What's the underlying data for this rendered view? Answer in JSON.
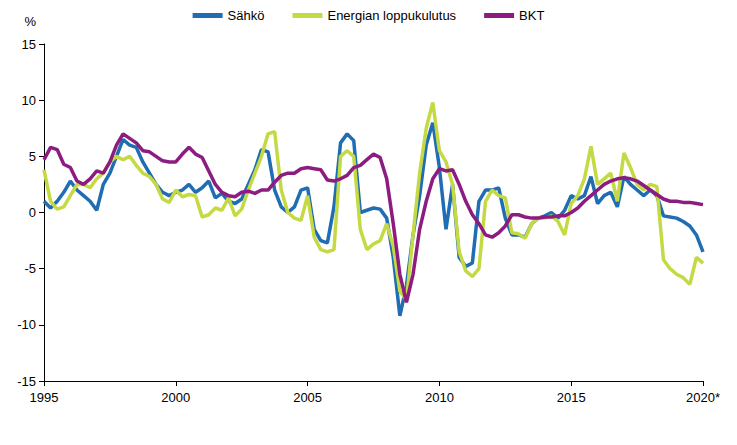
{
  "chart_data": {
    "type": "line",
    "ylabel": "%",
    "legend": "top",
    "grid": false,
    "xlim": [
      1995,
      2020
    ],
    "xticks": [
      1995,
      2000,
      2005,
      2010,
      2015,
      {
        "value": 2020,
        "label": "2020*"
      }
    ],
    "ylim": [
      -15,
      15
    ],
    "yticks": [
      -15,
      -10,
      -5,
      0,
      5,
      10,
      15
    ],
    "x": [
      1995,
      1995.25,
      1995.5,
      1995.75,
      1996,
      1996.25,
      1996.5,
      1996.75,
      1997,
      1997.25,
      1997.5,
      1997.75,
      1998,
      1998.25,
      1998.5,
      1998.75,
      1999,
      1999.25,
      1999.5,
      1999.75,
      2000,
      2000.25,
      2000.5,
      2000.75,
      2001,
      2001.25,
      2001.5,
      2001.75,
      2002,
      2002.25,
      2002.5,
      2002.75,
      2003,
      2003.25,
      2003.5,
      2003.75,
      2004,
      2004.25,
      2004.5,
      2004.75,
      2005,
      2005.25,
      2005.5,
      2005.75,
      2006,
      2006.25,
      2006.5,
      2006.75,
      2007,
      2007.25,
      2007.5,
      2007.75,
      2008,
      2008.25,
      2008.5,
      2008.75,
      2009,
      2009.25,
      2009.5,
      2009.75,
      2010,
      2010.25,
      2010.5,
      2010.75,
      2011,
      2011.25,
      2011.5,
      2011.75,
      2012,
      2012.25,
      2012.5,
      2012.75,
      2013,
      2013.25,
      2013.5,
      2013.75,
      2014,
      2014.25,
      2014.5,
      2014.75,
      2015,
      2015.25,
      2015.5,
      2015.75,
      2016,
      2016.25,
      2016.5,
      2016.75,
      2017,
      2017.25,
      2017.5,
      2017.75,
      2018,
      2018.25,
      2018.5,
      2018.75,
      2019,
      2019.25,
      2019.5,
      2019.75,
      2020
    ],
    "series": [
      {
        "name": "Sähkö",
        "color": "#1f6db2",
        "values": [
          1.0,
          0.4,
          1.0,
          1.8,
          2.8,
          2.0,
          1.5,
          1.0,
          0.2,
          2.5,
          3.5,
          5.0,
          6.5,
          6.0,
          5.8,
          4.5,
          3.5,
          2.5,
          1.8,
          1.5,
          1.8,
          2.0,
          2.5,
          1.8,
          2.2,
          2.8,
          1.3,
          1.7,
          1.0,
          0.8,
          1.2,
          2.5,
          3.8,
          5.6,
          5.4,
          2.0,
          0.5,
          0.0,
          0.5,
          2.0,
          2.2,
          -1.5,
          -2.5,
          -2.7,
          0.5,
          6.2,
          7.0,
          6.4,
          0.0,
          0.2,
          0.4,
          0.3,
          -0.5,
          -4.0,
          -9.2,
          -6.5,
          -2.0,
          1.5,
          6.0,
          8.0,
          4.0,
          -1.5,
          2.5,
          -4.0,
          -4.8,
          -4.5,
          1.0,
          2.0,
          2.0,
          2.2,
          -0.5,
          -2.0,
          -2.0,
          -2.2,
          -1.0,
          -0.5,
          -0.3,
          0.0,
          -0.5,
          0.2,
          1.5,
          1.2,
          1.5,
          3.2,
          0.8,
          1.5,
          1.8,
          0.5,
          3.2,
          2.5,
          2.0,
          1.5,
          2.0,
          1.5,
          -0.3,
          -0.4,
          -0.5,
          -0.8,
          -1.2,
          -2.0,
          -3.5
        ]
      },
      {
        "name": "Energian loppukulutus",
        "color": "#c5d944",
        "values": [
          3.8,
          1.0,
          0.3,
          0.5,
          1.5,
          2.5,
          2.5,
          2.2,
          3.0,
          3.5,
          4.5,
          5.0,
          4.7,
          5.0,
          4.2,
          3.5,
          3.2,
          2.5,
          1.2,
          0.9,
          2.0,
          1.4,
          1.6,
          1.5,
          -0.4,
          -0.2,
          0.4,
          0.2,
          1.3,
          -0.3,
          0.3,
          2.0,
          3.5,
          5.0,
          7.0,
          7.2,
          2.0,
          0.0,
          -0.5,
          -0.7,
          1.5,
          -2.2,
          -3.3,
          -3.5,
          -3.3,
          5.0,
          5.5,
          5.0,
          -1.5,
          -3.3,
          -2.8,
          -2.5,
          -1.0,
          -3.0,
          -7.0,
          -7.8,
          -2.0,
          3.5,
          7.5,
          9.8,
          5.5,
          4.5,
          2.5,
          -3.5,
          -5.2,
          -5.7,
          -5.0,
          1.0,
          2.0,
          1.5,
          1.3,
          -1.8,
          -1.9,
          -2.3,
          -1.0,
          -0.5,
          -0.5,
          -0.3,
          -0.8,
          -2.0,
          0.8,
          1.5,
          3.0,
          5.9,
          2.5,
          3.0,
          3.5,
          1.0,
          5.3,
          4.0,
          2.5,
          2.0,
          2.5,
          2.3,
          -4.2,
          -5.0,
          -5.5,
          -5.8,
          -6.4,
          -4.0,
          -4.5
        ]
      },
      {
        "name": "BKT",
        "color": "#8c1c80",
        "values": [
          4.7,
          5.8,
          5.6,
          4.3,
          4.0,
          2.8,
          2.5,
          3.0,
          3.7,
          3.5,
          4.5,
          6.0,
          7.0,
          6.6,
          6.2,
          5.5,
          5.4,
          5.0,
          4.6,
          4.5,
          4.5,
          5.2,
          5.8,
          5.2,
          4.9,
          3.7,
          2.5,
          1.8,
          1.5,
          1.4,
          1.8,
          1.9,
          1.7,
          2.0,
          2.0,
          2.7,
          3.3,
          3.5,
          3.5,
          3.9,
          4.0,
          3.9,
          3.8,
          2.9,
          2.8,
          3.0,
          3.3,
          4.0,
          4.2,
          4.7,
          5.2,
          4.9,
          3.0,
          -1.0,
          -5.5,
          -8.0,
          -5.5,
          -1.5,
          1.0,
          3.0,
          3.9,
          3.7,
          3.8,
          2.5,
          1.0,
          -0.2,
          -1.0,
          -2.0,
          -2.2,
          -1.8,
          -1.2,
          -0.2,
          -0.2,
          -0.4,
          -0.5,
          -0.5,
          -0.4,
          -0.4,
          -0.3,
          -0.3,
          0.0,
          0.4,
          1.0,
          1.5,
          2.0,
          2.5,
          2.8,
          3.0,
          3.1,
          3.0,
          2.8,
          2.4,
          2.0,
          1.6,
          1.2,
          1.0,
          1.0,
          0.9,
          0.9,
          0.8,
          0.7
        ]
      }
    ]
  }
}
